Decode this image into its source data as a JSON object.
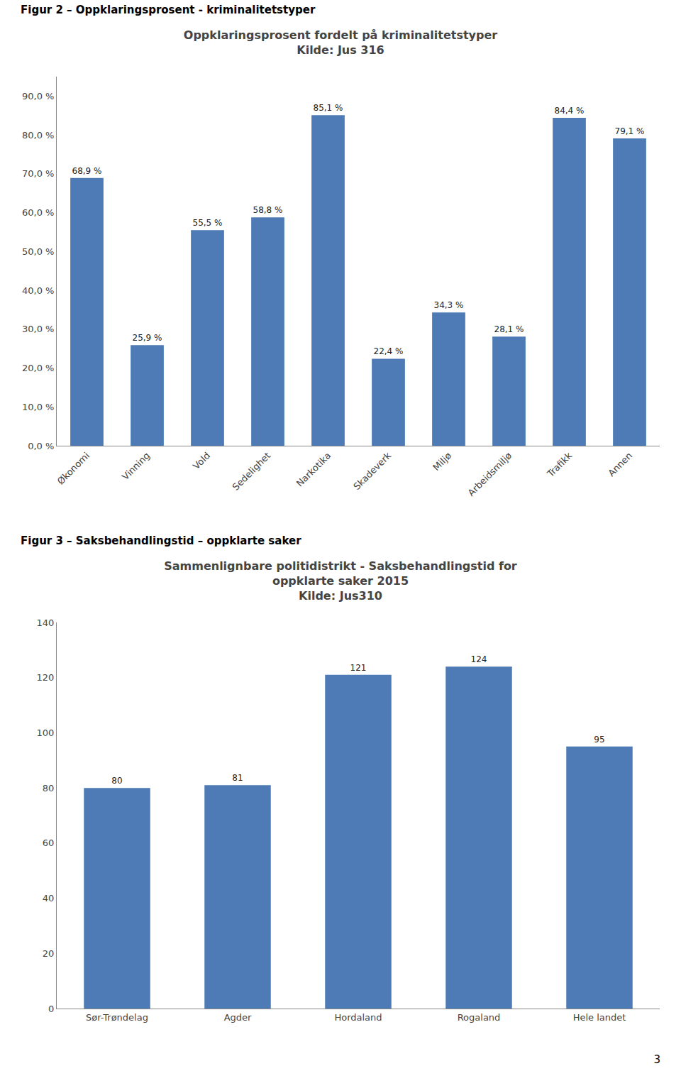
{
  "chart_data": [
    {
      "type": "bar",
      "annotations": [
        "Figur 2 – Oppklaringsprosent - kriminalitetstyper"
      ],
      "title": [
        "Oppklaringsprosent fordelt på kriminalitetstyper"
      ],
      "subtitle": "Kilde: Jus 316",
      "categories": [
        "Økonomi",
        "Vinning",
        "Vold",
        "Sedelighet",
        "Narkotika",
        "Skadeverk",
        "Miljø",
        "Arbeidsmiljø",
        "Trafikk",
        "Annen"
      ],
      "values": [
        68.9,
        25.9,
        55.5,
        58.8,
        85.1,
        22.4,
        34.3,
        28.1,
        84.4,
        79.1
      ],
      "value_labels": [
        "68,9 %",
        "25,9 %",
        "55,5 %",
        "58,8 %",
        "85,1 %",
        "22,4 %",
        "34,3 %",
        "28,1 %",
        "84,4 %",
        "79,1 %"
      ],
      "data_labels": true,
      "color": "#4E7BB5",
      "ylim": [
        0,
        95
      ],
      "yticks": [
        {
          "value": 0,
          "label": "0,0 %"
        },
        {
          "value": 10,
          "label": "10,0 %"
        },
        {
          "value": 20,
          "label": "20,0 %"
        },
        {
          "value": 30,
          "label": "30,0 %"
        },
        {
          "value": 40,
          "label": "40,0 %"
        },
        {
          "value": 50,
          "label": "50,0 %"
        },
        {
          "value": 60,
          "label": "60,0 %"
        },
        {
          "value": 70,
          "label": "70,0 %"
        },
        {
          "value": 80,
          "label": "80,0 %"
        },
        {
          "value": 90,
          "label": "90,0 %"
        }
      ],
      "grid": false
    },
    {
      "type": "bar",
      "annotations": [
        "Figur 3 – Saksbehandlingstid – oppklarte saker",
        "3"
      ],
      "title": [
        "Sammenlignbare politidistrikt - Saksbehandlingstid for",
        "oppklarte saker 2015"
      ],
      "subtitle": "Kilde: Jus310",
      "categories": [
        "Sør-Trøndelag",
        "Agder",
        "Hordaland",
        "Rogaland",
        "Hele landet"
      ],
      "values": [
        80,
        81,
        121,
        124,
        95
      ],
      "data_labels": true,
      "color": "#4E7BB5",
      "ylim": [
        0,
        140
      ],
      "yticks": [
        0,
        20,
        40,
        60,
        80,
        100,
        120,
        140
      ],
      "grid": false
    }
  ]
}
